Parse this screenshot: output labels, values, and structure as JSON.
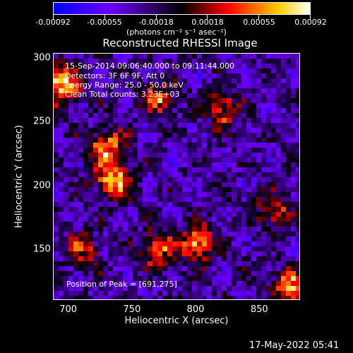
{
  "colorbar": {
    "tick_labels": [
      "-0.00092",
      "-0.00055",
      "-0.00018",
      "0.00018",
      "0.00055",
      "0.00092"
    ],
    "units": "(photons cm⁻² s⁻¹ asec⁻²)",
    "colors": [
      "#0000ff",
      "#6d00ff",
      "#000000",
      "#ff0000",
      "#ffd000",
      "#ffffff"
    ]
  },
  "title": "Reconstructed RHESSI Image",
  "info_lines": [
    "15-Sep-2014 09:06:40.000 to 09:11:44.000",
    "Detectors: 3F 6F 9F, Att 0",
    "Energy Range: 25.0 - 50.0 keV",
    "Clean    Total counts: 3.23E+03"
  ],
  "peak_label": "Position of Peak = [691,275]",
  "timestamp": "17-May-2022 05:41",
  "chart_data": {
    "type": "heatmap",
    "title": "Reconstructed RHESSI Image",
    "xlabel": "Heliocentric X (arcsec)",
    "ylabel": "Heliocentric Y (arcsec)",
    "xlim": [
      688,
      882
    ],
    "ylim": [
      110,
      304
    ],
    "xticks": [
      700,
      750,
      800,
      850
    ],
    "yticks": [
      150,
      200,
      250,
      300
    ],
    "zlim": [
      -0.00092,
      0.00092
    ],
    "grid": false,
    "hotspots": [
      {
        "x": 695,
        "y": 280,
        "value": 0.00092
      },
      {
        "x": 735,
        "y": 205,
        "value": 0.00075
      },
      {
        "x": 730,
        "y": 230,
        "value": 0.00065
      },
      {
        "x": 770,
        "y": 268,
        "value": 0.00045
      },
      {
        "x": 820,
        "y": 260,
        "value": 0.0004
      },
      {
        "x": 800,
        "y": 155,
        "value": 0.0007
      },
      {
        "x": 770,
        "y": 150,
        "value": 0.0005
      },
      {
        "x": 875,
        "y": 120,
        "value": 0.00065
      },
      {
        "x": 860,
        "y": 180,
        "value": 0.00035
      },
      {
        "x": 710,
        "y": 150,
        "value": 0.0003
      }
    ]
  }
}
